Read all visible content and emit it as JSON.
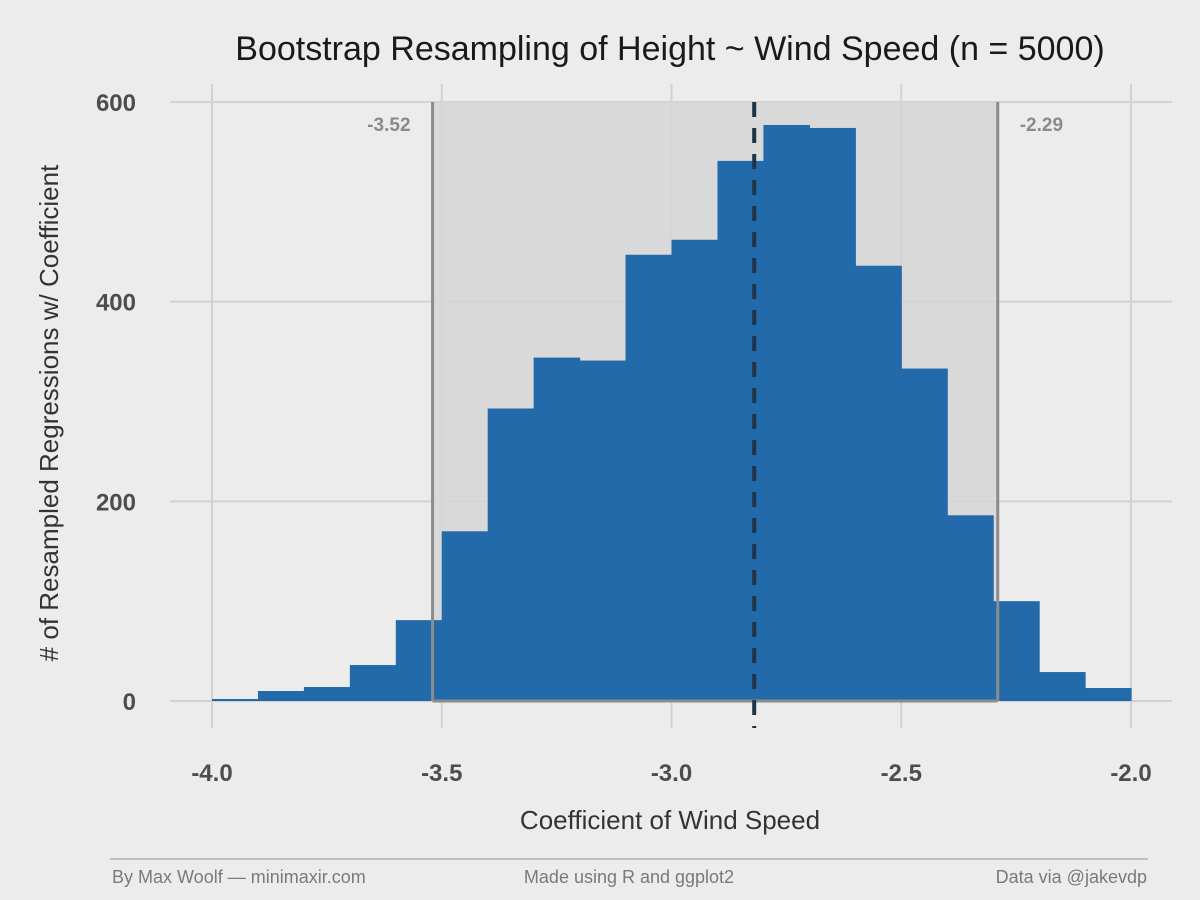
{
  "chart_data": {
    "type": "bar",
    "title": "Bootstrap Resampling of Height ~ Wind Speed (n = 5000)",
    "xlabel": "Coefficient of Wind Speed",
    "ylabel": "# of Resampled Regressions w/ Coefficient",
    "xlim": [
      -4.0,
      -2.0
    ],
    "ylim": [
      0,
      600
    ],
    "x_ticks": [
      -4.0,
      -3.5,
      -3.0,
      -2.5,
      -2.0
    ],
    "x_tick_labels": [
      "-4.0",
      "-3.5",
      "-3.0",
      "-2.5",
      "-2.0"
    ],
    "y_ticks": [
      0,
      200,
      400,
      600
    ],
    "y_tick_labels": [
      "0",
      "200",
      "400",
      "600"
    ],
    "grid": true,
    "bin_width": 0.1,
    "bin_starts": [
      -4.0,
      -3.9,
      -3.8,
      -3.7,
      -3.6,
      -3.5,
      -3.4,
      -3.3,
      -3.2,
      -3.1,
      -3.0,
      -2.9,
      -2.8,
      -2.7,
      -2.6,
      -2.5,
      -2.4,
      -2.3,
      -2.2,
      -2.1
    ],
    "values": [
      2,
      10,
      14,
      36,
      81,
      170,
      293,
      344,
      341,
      447,
      462,
      541,
      577,
      574,
      436,
      333,
      186,
      100,
      29,
      13
    ],
    "color": "#236aaa",
    "confidence_interval": {
      "lower": -3.52,
      "upper": -2.29,
      "lower_label": "-3.52",
      "upper_label": "-2.29"
    },
    "mean_line": -2.82
  },
  "footer": {
    "left": "By Max Woolf — minimaxir.com",
    "center": "Made using R and ggplot2",
    "right": "Data via @jakevdp"
  }
}
